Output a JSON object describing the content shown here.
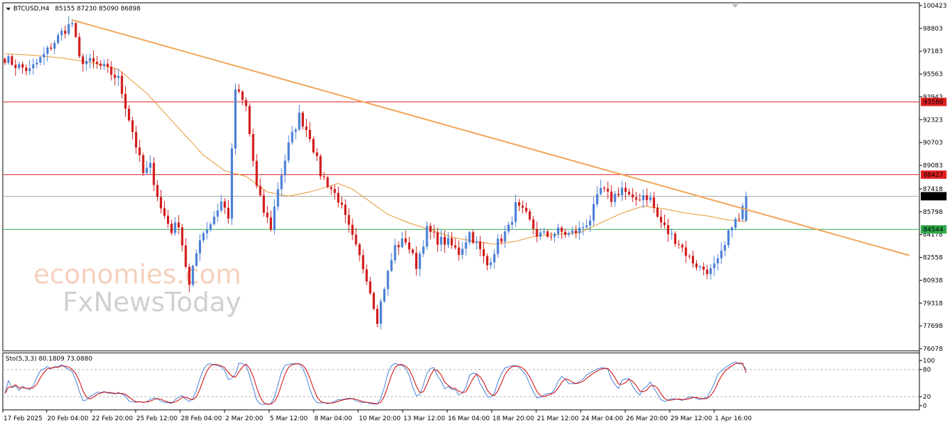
{
  "header": {
    "symbol_label": "BTCUSD,H4",
    "ohlc_label": "85155 87230 85090 86898"
  },
  "oscillator": {
    "label": "Sto(5,3,3) 80.1809 73.0880",
    "levels": [
      "100",
      "80",
      "20",
      "0"
    ],
    "main_color": "#4a7fd6",
    "signal_color": "#cc0000"
  },
  "watermark": {
    "line1": "economies.com",
    "line2": "FxNewsToday"
  },
  "colors": {
    "bull": "#4a7fd6",
    "bear": "#d11a1a",
    "ma": "#e8952e",
    "trendline": "#f2a65a",
    "resistance": "#e02020",
    "support": "#2ea84a",
    "current": "#aaaaaa"
  },
  "chart_data": {
    "type": "candlestick",
    "instrument": "BTCUSD",
    "timeframe": "H4",
    "last": {
      "open": 85155,
      "high": 87230,
      "low": 85090,
      "close": 86898
    },
    "y_ticks": [
      "100423",
      "98803",
      "97183",
      "95563",
      "93943",
      "92323",
      "90703",
      "89083",
      "87418",
      "85798",
      "84178",
      "82558",
      "80938",
      "79318",
      "77698",
      "76078"
    ],
    "ylim": [
      76078,
      100423
    ],
    "x_ticks": [
      "17 Feb 2025",
      "20 Feb 04:00",
      "22 Feb 20:00",
      "25 Feb 12:00",
      "28 Feb 04:00",
      "2 Mar 20:00",
      "5 Mar 12:00",
      "8 Mar 04:00",
      "10 Mar 20:00",
      "13 Mar 12:00",
      "16 Mar 04:00",
      "18 Mar 20:00",
      "21 Mar 12:00",
      "24 Mar 04:00",
      "26 Mar 20:00",
      "29 Mar 12:00",
      "1 Apr 16:00"
    ],
    "price_path": [
      [
        0,
        96700
      ],
      [
        3,
        96200
      ],
      [
        7,
        95800
      ],
      [
        11,
        96900
      ],
      [
        16,
        98500
      ],
      [
        19,
        99200
      ],
      [
        21,
        96600
      ],
      [
        24,
        96400
      ],
      [
        28,
        96000
      ],
      [
        32,
        95200
      ],
      [
        36,
        91500
      ],
      [
        39,
        88500
      ],
      [
        41,
        89000
      ],
      [
        44,
        86000
      ],
      [
        47,
        84500
      ],
      [
        49,
        85000
      ],
      [
        52,
        80500
      ],
      [
        55,
        84000
      ],
      [
        58,
        85000
      ],
      [
        61,
        86500
      ],
      [
        63,
        85500
      ],
      [
        65,
        94500
      ],
      [
        68,
        93200
      ],
      [
        71,
        87500
      ],
      [
        73,
        85800
      ],
      [
        75,
        84700
      ],
      [
        77,
        87500
      ],
      [
        80,
        90500
      ],
      [
        83,
        92600
      ],
      [
        86,
        91200
      ],
      [
        89,
        88500
      ],
      [
        91,
        87800
      ],
      [
        94,
        86700
      ],
      [
        96,
        85300
      ],
      [
        99,
        83200
      ],
      [
        102,
        81200
      ],
      [
        105,
        78200
      ],
      [
        107,
        80500
      ],
      [
        110,
        83300
      ],
      [
        113,
        83800
      ],
      [
        116,
        82000
      ],
      [
        119,
        84500
      ],
      [
        122,
        83800
      ],
      [
        125,
        83600
      ],
      [
        128,
        82900
      ],
      [
        131,
        84300
      ],
      [
        133,
        83500
      ],
      [
        136,
        82000
      ],
      [
        139,
        83600
      ],
      [
        142,
        84600
      ],
      [
        144,
        86200
      ],
      [
        147,
        85500
      ],
      [
        150,
        84200
      ],
      [
        153,
        84100
      ],
      [
        156,
        84400
      ],
      [
        159,
        84200
      ],
      [
        162,
        84500
      ],
      [
        165,
        85300
      ],
      [
        168,
        87400
      ],
      [
        171,
        86700
      ],
      [
        174,
        87500
      ],
      [
        177,
        86500
      ],
      [
        180,
        87000
      ],
      [
        182,
        86700
      ],
      [
        184,
        85400
      ],
      [
        187,
        84300
      ],
      [
        190,
        83600
      ],
      [
        193,
        82500
      ],
      [
        196,
        81800
      ],
      [
        199,
        81600
      ],
      [
        201,
        82200
      ],
      [
        203,
        83300
      ],
      [
        205,
        85000
      ],
      [
        207,
        85200
      ],
      [
        209,
        86898
      ]
    ],
    "ma_path": [
      [
        0,
        97000
      ],
      [
        8,
        96900
      ],
      [
        16,
        96700
      ],
      [
        24,
        96400
      ],
      [
        32,
        95900
      ],
      [
        40,
        94200
      ],
      [
        48,
        92000
      ],
      [
        56,
        89800
      ],
      [
        62,
        88700
      ],
      [
        68,
        88300
      ],
      [
        74,
        87200
      ],
      [
        80,
        86900
      ],
      [
        86,
        87200
      ],
      [
        90,
        87500
      ],
      [
        94,
        87800
      ],
      [
        98,
        87400
      ],
      [
        103,
        86500
      ],
      [
        108,
        85600
      ],
      [
        114,
        85000
      ],
      [
        120,
        84500
      ],
      [
        126,
        84000
      ],
      [
        132,
        83700
      ],
      [
        138,
        83500
      ],
      [
        144,
        83700
      ],
      [
        150,
        84100
      ],
      [
        156,
        84200
      ],
      [
        162,
        84300
      ],
      [
        168,
        85000
      ],
      [
        174,
        85700
      ],
      [
        180,
        86200
      ],
      [
        186,
        86000
      ],
      [
        192,
        85700
      ],
      [
        198,
        85500
      ],
      [
        204,
        85200
      ],
      [
        209,
        85100
      ]
    ],
    "horizontal_levels": [
      {
        "label": "93588",
        "value": 93588,
        "role": "resistance"
      },
      {
        "label": "88427",
        "value": 88427,
        "role": "resistance"
      },
      {
        "label": "86898",
        "value": 86898,
        "role": "current"
      },
      {
        "label": "84544",
        "value": 84544,
        "role": "support"
      }
    ],
    "trendline": {
      "from": {
        "bar": 19,
        "price": 99400
      },
      "to": {
        "bar": 255,
        "price": 82700
      }
    },
    "stochastic": {
      "k_last": 80.1809,
      "d_last": 73.088,
      "overbought": 80,
      "oversold": 20,
      "range": [
        0,
        100
      ]
    }
  }
}
